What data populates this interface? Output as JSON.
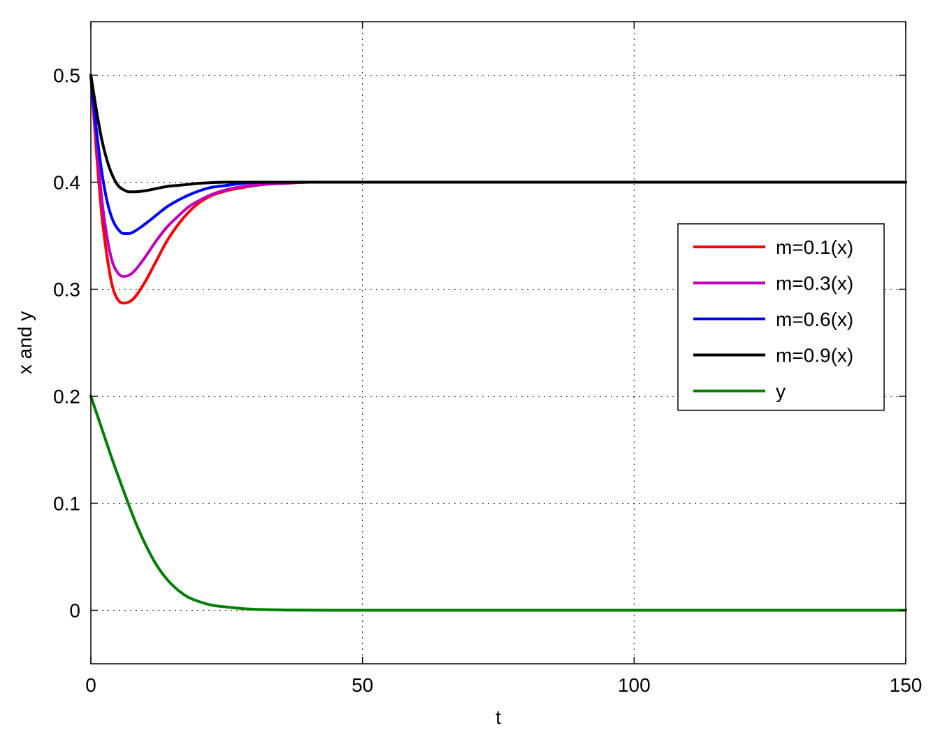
{
  "chart_data": {
    "type": "line",
    "title": "",
    "xlabel": "t",
    "ylabel": "x and y",
    "xlim": [
      0,
      150
    ],
    "ylim": [
      -0.05,
      0.55
    ],
    "xticks": [
      0,
      50,
      100,
      150
    ],
    "xtick_labels": [
      "0",
      "50",
      "100",
      "150"
    ],
    "yticks": [
      0,
      0.1,
      0.2,
      0.3,
      0.4,
      0.5
    ],
    "ytick_labels": [
      "0",
      "0.1",
      "0.2",
      "0.3",
      "0.4",
      "0.5"
    ],
    "grid": true,
    "legend_position": "right",
    "series": [
      {
        "name": "m=0.1(x)",
        "color": "#ff0000",
        "x": [
          0,
          1,
          2,
          3,
          4,
          5,
          6,
          7,
          8,
          10,
          12,
          14,
          16,
          18,
          20,
          22,
          25,
          28,
          32,
          36,
          40,
          50,
          100,
          150
        ],
        "y": [
          0.5,
          0.43,
          0.37,
          0.33,
          0.302,
          0.29,
          0.287,
          0.288,
          0.292,
          0.307,
          0.326,
          0.345,
          0.36,
          0.372,
          0.381,
          0.387,
          0.392,
          0.395,
          0.398,
          0.399,
          0.4,
          0.4,
          0.4,
          0.4
        ]
      },
      {
        "name": "m=0.3(x)",
        "color": "#bf00bf",
        "x": [
          0,
          1,
          2,
          3,
          4,
          5,
          6,
          7,
          8,
          10,
          12,
          14,
          16,
          18,
          20,
          22,
          25,
          28,
          32,
          36,
          40,
          50,
          100,
          150
        ],
        "y": [
          0.5,
          0.44,
          0.385,
          0.348,
          0.325,
          0.315,
          0.312,
          0.313,
          0.317,
          0.33,
          0.345,
          0.358,
          0.368,
          0.377,
          0.383,
          0.388,
          0.393,
          0.396,
          0.398,
          0.399,
          0.4,
          0.4,
          0.4,
          0.4
        ]
      },
      {
        "name": "m=0.6(x)",
        "color": "#0000ff",
        "x": [
          0,
          1,
          2,
          3,
          4,
          5,
          6,
          7,
          8,
          10,
          12,
          14,
          16,
          18,
          20,
          22,
          25,
          28,
          32,
          36,
          40,
          50,
          100,
          150
        ],
        "y": [
          0.5,
          0.45,
          0.41,
          0.382,
          0.365,
          0.356,
          0.352,
          0.352,
          0.354,
          0.361,
          0.369,
          0.377,
          0.383,
          0.388,
          0.392,
          0.395,
          0.397,
          0.399,
          0.4,
          0.4,
          0.4,
          0.4,
          0.4,
          0.4
        ]
      },
      {
        "name": "m=0.9(x)",
        "color": "#000000",
        "x": [
          0,
          1,
          2,
          3,
          4,
          5,
          6,
          7,
          8,
          10,
          12,
          14,
          16,
          18,
          20,
          22,
          25,
          28,
          32,
          36,
          40,
          50,
          100,
          150
        ],
        "y": [
          0.5,
          0.468,
          0.44,
          0.42,
          0.406,
          0.397,
          0.393,
          0.391,
          0.391,
          0.392,
          0.394,
          0.396,
          0.397,
          0.398,
          0.399,
          0.3995,
          0.4,
          0.4,
          0.4,
          0.4,
          0.4,
          0.4,
          0.4,
          0.4
        ]
      },
      {
        "name": "y",
        "color": "#007f00",
        "x": [
          0,
          2,
          4,
          6,
          8,
          10,
          12,
          14,
          16,
          18,
          20,
          22,
          25,
          28,
          32,
          36,
          40,
          50,
          100,
          150
        ],
        "y": [
          0.2,
          0.17,
          0.14,
          0.112,
          0.085,
          0.062,
          0.043,
          0.029,
          0.019,
          0.012,
          0.008,
          0.005,
          0.003,
          0.0015,
          0.0006,
          0.0002,
          0.0001,
          0,
          0,
          0
        ]
      }
    ]
  }
}
